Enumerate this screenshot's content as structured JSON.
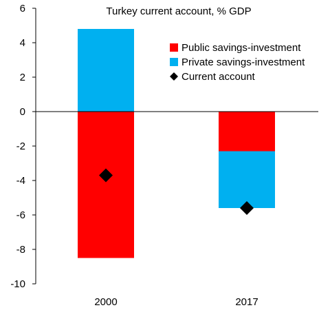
{
  "chart_data": {
    "type": "bar",
    "stacked": true,
    "title": "Turkey current account, % GDP",
    "xlabel": "",
    "ylabel": "",
    "categories": [
      "2000",
      "2017"
    ],
    "ylim": [
      -10,
      6
    ],
    "yticks": [
      6,
      4,
      2,
      0,
      -2,
      -4,
      -6,
      -8,
      -10
    ],
    "grid": false,
    "legend_position": "top-right",
    "series": [
      {
        "name": "Public savings-investment",
        "kind": "bar",
        "color": "#FF0000",
        "values": [
          -8.5,
          -2.3
        ]
      },
      {
        "name": "Private savings-investment",
        "kind": "bar",
        "color": "#00B0F0",
        "values": [
          4.8,
          -3.3
        ]
      },
      {
        "name": "Current account",
        "kind": "marker",
        "marker": "diamond",
        "color": "#000000",
        "values": [
          -3.7,
          -5.6
        ]
      }
    ]
  }
}
